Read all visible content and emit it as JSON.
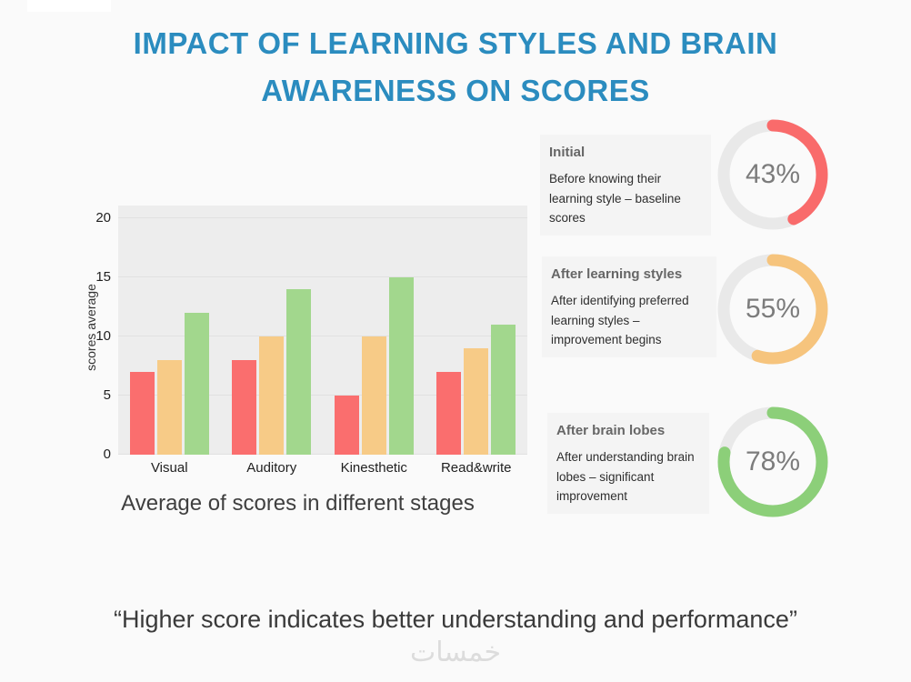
{
  "page": {
    "title_lines": [
      "IMPACT OF LEARNING STYLES AND BRAIN",
      "AWARENESS ON SCORES"
    ],
    "quote": "“Higher score indicates better understanding and performance”",
    "watermark": "خمسات"
  },
  "chart_data": [
    {
      "type": "bar",
      "title": "Average of scores in different stages",
      "xlabel": "",
      "ylabel": "scores average",
      "categories": [
        "Visual",
        "Auditory",
        "Kinesthetic",
        "Read&write"
      ],
      "series": [
        {
          "color": "#fa6e6e",
          "values": [
            7,
            8,
            5,
            7
          ]
        },
        {
          "color": "#f7cb87",
          "values": [
            8,
            10,
            10,
            9
          ]
        },
        {
          "color": "#a2d78d",
          "values": [
            12,
            14,
            15,
            11
          ]
        }
      ],
      "ylim": [
        0,
        20
      ],
      "yticks": [
        0,
        5,
        10,
        15,
        20
      ],
      "grid": true,
      "legend": "none",
      "plot_background": "#ededed"
    },
    {
      "type": "pie",
      "subtype": "donut-gauges",
      "items": [
        {
          "pct": 43,
          "label": "43%",
          "color": "#f96b6b",
          "heading": "Initial",
          "description": "Before knowing their learning style – baseline scores"
        },
        {
          "pct": 55,
          "label": "55%",
          "color": "#f6c47d",
          "heading": "After learning styles",
          "description": "After identifying preferred learning styles – improvement begins"
        },
        {
          "pct": 78,
          "label": "78%",
          "color": "#8ccf79",
          "heading": "After brain lobes",
          "description": "After understanding brain lobes – significant improvement"
        }
      ]
    }
  ]
}
